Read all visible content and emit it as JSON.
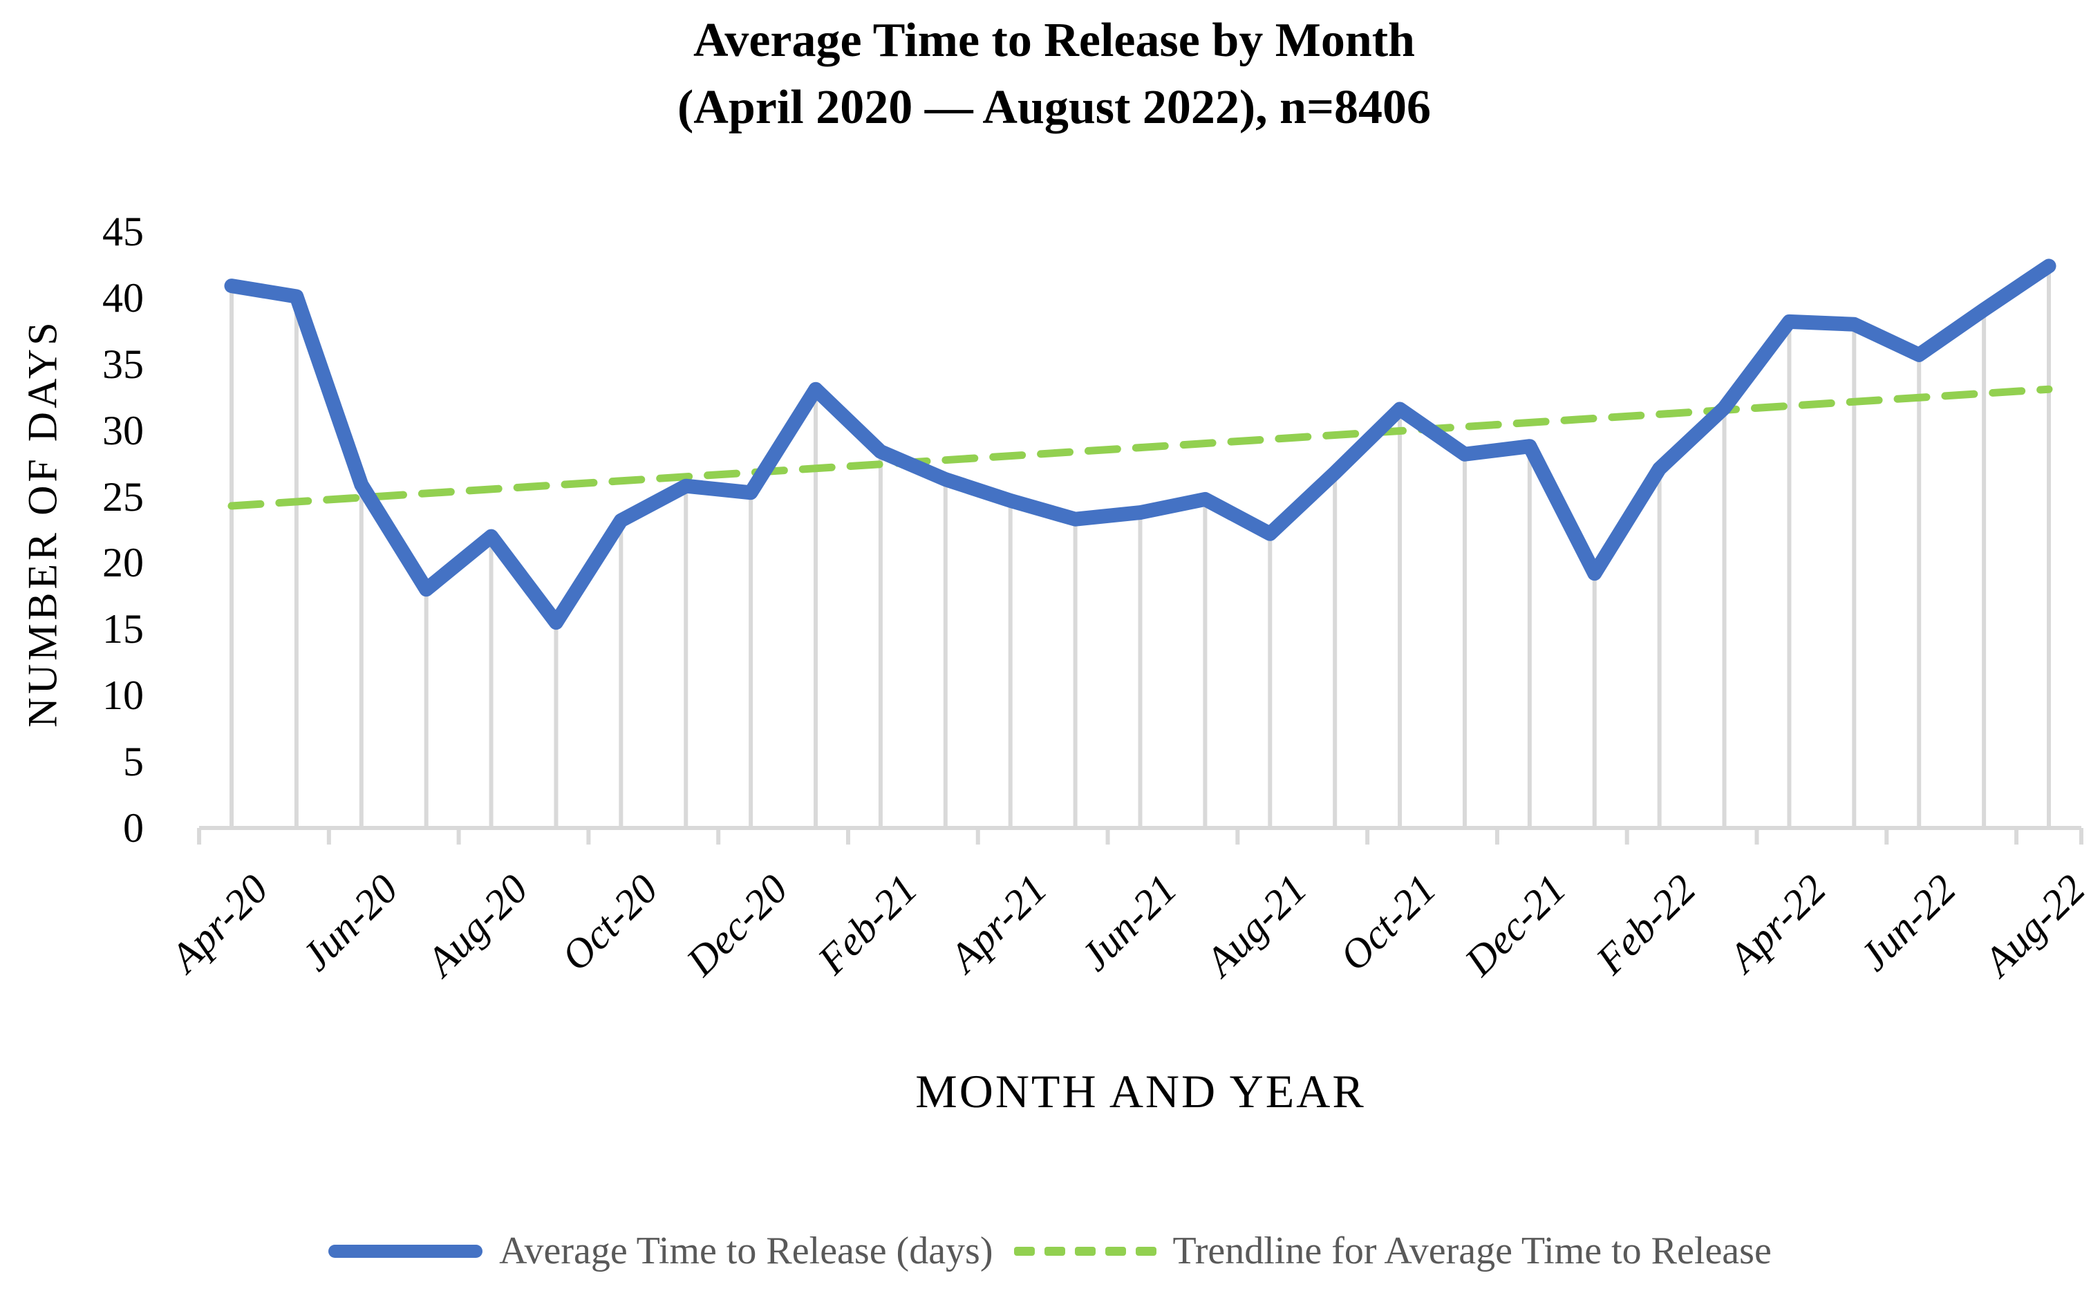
{
  "title": {
    "line1": "Average Time to Release by Month",
    "line2": "(April 2020 — August 2022), n=8406"
  },
  "axes": {
    "y": {
      "title": "NUMBER OF DAYS",
      "ticks": [
        45,
        40,
        35,
        30,
        25,
        20,
        15,
        10,
        5,
        0
      ]
    },
    "x": {
      "title": "MONTH AND YEAR",
      "visible_labels": [
        "Apr-20",
        "Jun-20",
        "Aug-20",
        "Oct-20",
        "Dec-20",
        "Feb-21",
        "Apr-21",
        "Jun-21",
        "Aug-21",
        "Oct-21",
        "Dec-21",
        "Feb-22",
        "Apr-22",
        "Jun-22",
        "Aug-22"
      ]
    }
  },
  "legend": {
    "items": [
      {
        "label": "Average Time to Release (days)",
        "swatch": "solid-blue-line"
      },
      {
        "label": "Trendline for Average Time to Release",
        "swatch": "dashed-green-line"
      }
    ]
  },
  "colors": {
    "series_blue": "#4472C4",
    "trend_green": "#92D050",
    "grid_gray": "#D9D9D9",
    "legend_text": "#595959",
    "text": "#000000"
  },
  "chart_data": {
    "type": "line",
    "title": "Average Time to Release by Month (April 2020 — August 2022), n=8406",
    "xlabel": "MONTH AND YEAR",
    "ylabel": "NUMBER OF DAYS",
    "ylim": [
      0,
      45
    ],
    "y_tick_step": 5,
    "x_label_every": 2,
    "grid": "vertical-drop-lines-only",
    "legend_position": "bottom",
    "x": [
      "Apr-20",
      "May-20",
      "Jun-20",
      "Jul-20",
      "Aug-20",
      "Sep-20",
      "Oct-20",
      "Nov-20",
      "Dec-20",
      "Jan-21",
      "Feb-21",
      "Mar-21",
      "Apr-21",
      "May-21",
      "Jun-21",
      "Jul-21",
      "Aug-21",
      "Sep-21",
      "Oct-21",
      "Nov-21",
      "Dec-21",
      "Jan-22",
      "Feb-22",
      "Mar-22",
      "Apr-22",
      "May-22",
      "Jun-22",
      "Jul-22",
      "Aug-22"
    ],
    "series": [
      {
        "name": "Average Time to Release (days)",
        "style": "solid",
        "values": [
          40.9,
          40.1,
          25.9,
          18.0,
          22.0,
          15.5,
          23.2,
          25.8,
          25.3,
          33.1,
          28.4,
          26.3,
          24.7,
          23.3,
          23.8,
          24.8,
          22.2,
          26.8,
          31.6,
          28.2,
          28.8,
          19.2,
          27.1,
          31.7,
          38.2,
          38.0,
          35.7,
          39.1,
          42.4
        ]
      },
      {
        "name": "Trendline for Average Time to Release",
        "style": "dashed",
        "trend_endpoints": [
          24.3,
          33.1
        ]
      }
    ]
  }
}
